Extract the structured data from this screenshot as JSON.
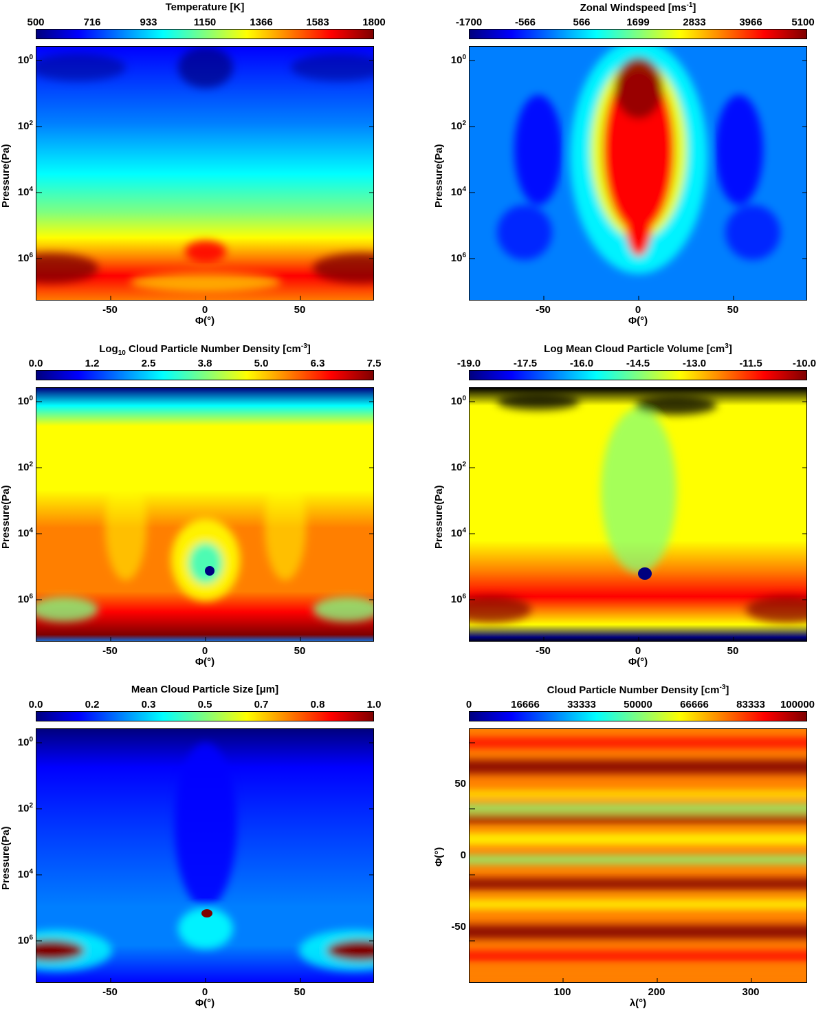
{
  "chart_data": [
    {
      "type": "heatmap",
      "title": "Temperature [K]",
      "colorbar_ticks": [
        "500",
        "716",
        "933",
        "1150",
        "1366",
        "1583",
        "1800"
      ],
      "colorbar_range": [
        500,
        1800
      ],
      "xlabel": "Φ(°)",
      "ylabel": "Pressure(Pa)",
      "x_ticks": [
        "-50",
        "0",
        "50"
      ],
      "y_ticks": [
        "10",
        "10",
        "10",
        "10"
      ],
      "y_tick_exponents": [
        "0",
        "2",
        "4",
        "6"
      ],
      "x_range": [
        -90,
        90
      ],
      "y_range": [
        0.3,
        8000000
      ],
      "y_scale": "log",
      "y_inverted": true
    },
    {
      "type": "heatmap",
      "title": "Zonal Windspeed [ms",
      "title_sup": "-1",
      "title_end": "]",
      "colorbar_ticks": [
        "-1700",
        "-566",
        "566",
        "1699",
        "2833",
        "3966",
        "5100"
      ],
      "colorbar_range": [
        -1700,
        5100
      ],
      "xlabel": "Φ(°)",
      "ylabel": "Pressure(Pa)",
      "x_ticks": [
        "-50",
        "0",
        "50"
      ],
      "y_ticks": [
        "10",
        "10",
        "10",
        "10"
      ],
      "y_tick_exponents": [
        "0",
        "2",
        "4",
        "6"
      ],
      "x_range": [
        -90,
        90
      ],
      "y_range": [
        0.3,
        8000000
      ],
      "y_scale": "log",
      "y_inverted": true
    },
    {
      "type": "heatmap",
      "title_pre": "Log",
      "title_sub": "10",
      "title": " Cloud Particle Number Density [cm",
      "title_sup": "-3",
      "title_end": "]",
      "colorbar_ticks": [
        "0.0",
        "1.2",
        "2.5",
        "3.8",
        "5.0",
        "6.3",
        "7.5"
      ],
      "colorbar_range": [
        0,
        7.5
      ],
      "xlabel": "Φ(°)",
      "ylabel": "Pressure(Pa)",
      "x_ticks": [
        "-50",
        "0",
        "50"
      ],
      "y_ticks": [
        "10",
        "10",
        "10",
        "10"
      ],
      "y_tick_exponents": [
        "0",
        "2",
        "4",
        "6"
      ],
      "x_range": [
        -90,
        90
      ],
      "y_range": [
        0.3,
        8000000
      ],
      "y_scale": "log",
      "y_inverted": true
    },
    {
      "type": "heatmap",
      "title": "Log Mean Cloud Particle Volume [cm",
      "title_sup": "3",
      "title_end": "]",
      "colorbar_ticks": [
        "-19.0",
        "-17.5",
        "-16.0",
        "-14.5",
        "-13.0",
        "-11.5",
        "-10.0"
      ],
      "colorbar_range": [
        -19,
        -10
      ],
      "xlabel": "Φ(°)",
      "ylabel": "Pressure(Pa)",
      "x_ticks": [
        "-50",
        "0",
        "50"
      ],
      "y_ticks": [
        "10",
        "10",
        "10",
        "10"
      ],
      "y_tick_exponents": [
        "0",
        "2",
        "4",
        "6"
      ],
      "x_range": [
        -90,
        90
      ],
      "y_range": [
        0.3,
        8000000
      ],
      "y_scale": "log",
      "y_inverted": true
    },
    {
      "type": "heatmap",
      "title": "Mean Cloud Particle Size [μm]",
      "colorbar_ticks": [
        "0.0",
        "0.2",
        "0.3",
        "0.5",
        "0.7",
        "0.8",
        "1.0"
      ],
      "colorbar_range": [
        0,
        1
      ],
      "xlabel": "Φ(°)",
      "ylabel": "Pressure(Pa)",
      "x_ticks": [
        "-50",
        "0",
        "50"
      ],
      "y_ticks": [
        "10",
        "10",
        "10",
        "10"
      ],
      "y_tick_exponents": [
        "0",
        "2",
        "4",
        "6"
      ],
      "x_range": [
        -90,
        90
      ],
      "y_range": [
        0.3,
        8000000
      ],
      "y_scale": "log",
      "y_inverted": true
    },
    {
      "type": "heatmap",
      "title": "Cloud Particle Number Density [cm",
      "title_sup": "-3",
      "title_end": "]",
      "colorbar_ticks": [
        "0",
        "16666",
        "33333",
        "50000",
        "66666",
        "83333",
        "100000"
      ],
      "colorbar_range": [
        0,
        100000
      ],
      "xlabel": "λ(°)",
      "ylabel": "Φ(°)",
      "x_ticks": [
        "100",
        "200",
        "300"
      ],
      "y_ticks": [
        "50",
        "0",
        "-50"
      ],
      "x_range": [
        0,
        360
      ],
      "y_range": [
        -90,
        90
      ],
      "y_scale": "linear"
    }
  ],
  "colormap": [
    "#00007f",
    "#0000ff",
    "#007fff",
    "#00ffff",
    "#7fff7f",
    "#ffff00",
    "#ff7f00",
    "#ff0000",
    "#7f0000"
  ]
}
